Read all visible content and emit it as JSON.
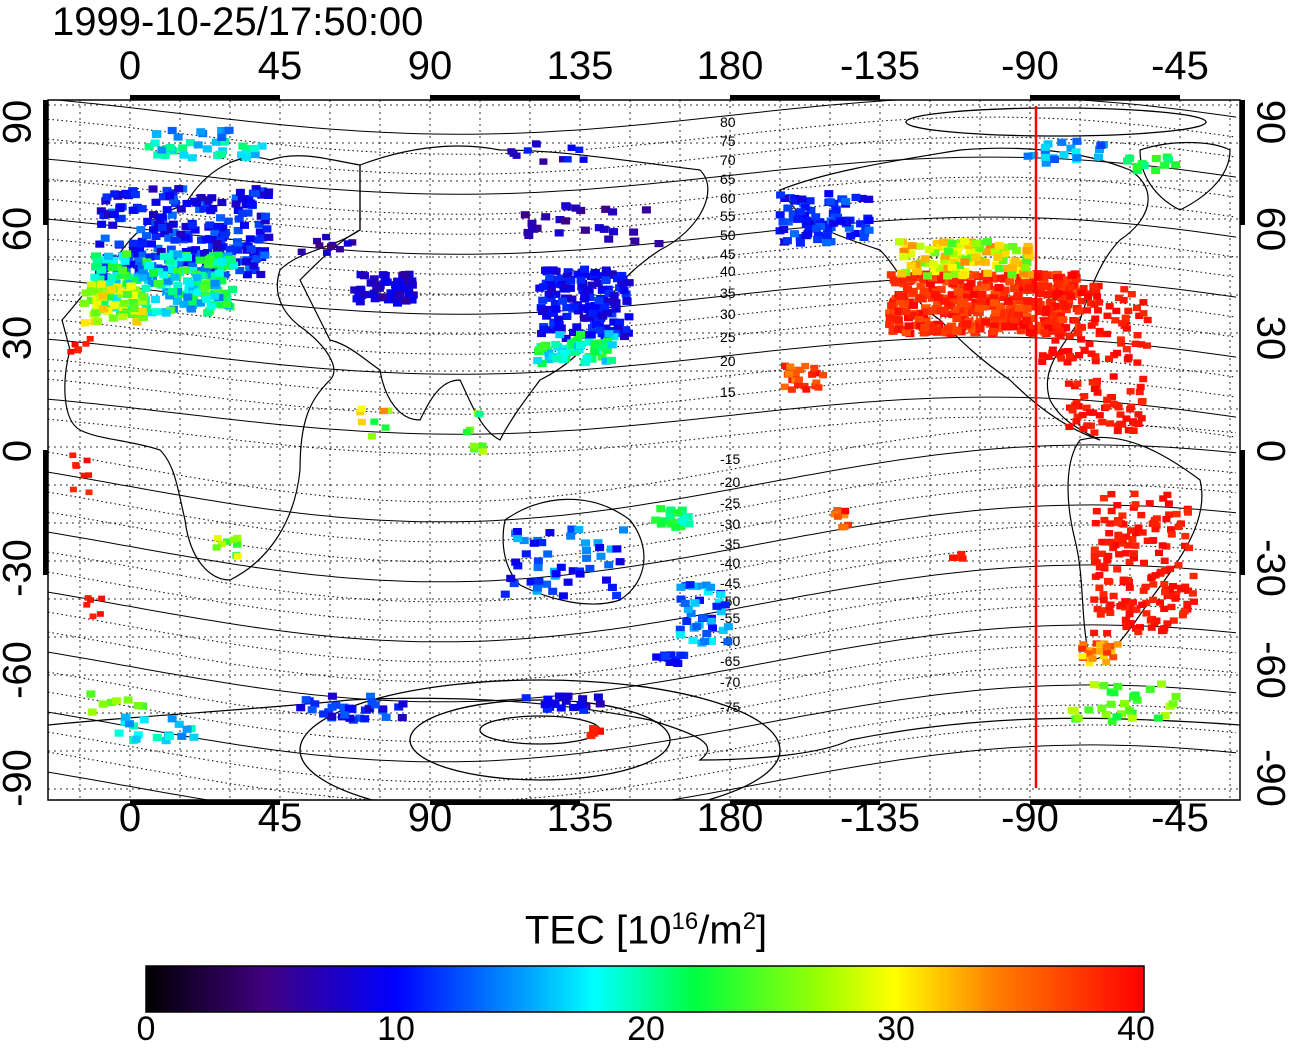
{
  "title": "1999-10-25/17:50:00",
  "axes": {
    "top_ticks": [
      "0",
      "45",
      "90",
      "135",
      "180",
      "-135",
      "-90",
      "-45"
    ],
    "bottom_ticks": [
      "0",
      "45",
      "90",
      "135",
      "180",
      "-135",
      "-90",
      "-45"
    ],
    "left_ticks": [
      "90",
      "60",
      "30",
      "0",
      "-30",
      "-60",
      "-90"
    ],
    "right_ticks": [
      "90",
      "60",
      "30",
      "0",
      "-30",
      "-60",
      "-90"
    ]
  },
  "contour_labels": [
    "80",
    "75",
    "70",
    "65",
    "60",
    "55",
    "50",
    "45",
    "40",
    "35",
    "30",
    "25",
    "20",
    "15",
    "-15",
    "-20",
    "-25",
    "-30",
    "-35",
    "-40",
    "-45",
    "-50",
    "-55",
    "-60",
    "-65",
    "-70",
    "-75"
  ],
  "colorbar": {
    "title_prefix": "TEC  [10",
    "title_exp1": "16",
    "title_mid": "/m",
    "title_exp2": "2",
    "title_suffix": "]",
    "ticks": [
      "0",
      "10",
      "20",
      "30",
      "40"
    ]
  },
  "colors": {
    "meridian_line": "#ff0000"
  }
}
